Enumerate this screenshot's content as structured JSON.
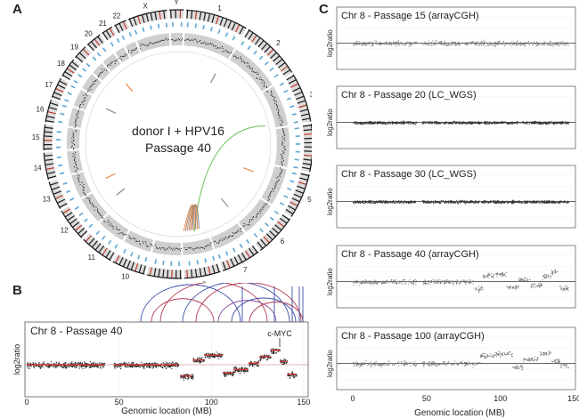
{
  "panels": {
    "a": {
      "letter": "A",
      "center_line1": "donor I + HPV16",
      "center_line2": "Passage 40",
      "chromosomes": [
        "1",
        "2",
        "3",
        "4",
        "5",
        "6",
        "7",
        "8",
        "9",
        "10",
        "11",
        "12",
        "13",
        "14",
        "15",
        "16",
        "17",
        "18",
        "19",
        "20",
        "21",
        "22",
        "X",
        "Y"
      ],
      "link_colors": {
        "green": "#6cbf5a",
        "orange": "#e8894a",
        "gray": "#8a8a8a"
      }
    },
    "b": {
      "letter": "B",
      "title": "Chr 8 - Passage 40",
      "annotation": "c-MYC",
      "xlabel": "Genomic location (MB)",
      "ylabel": "log2ratio",
      "xticks": [
        "0",
        "50",
        "100",
        "150"
      ]
    },
    "c": {
      "letter": "C",
      "xlabel": "Genomic location (MB)",
      "ylabel": "log2ratio",
      "xticks": [
        "0",
        "50",
        "100",
        "150"
      ],
      "subplots": [
        {
          "title": "Chr 8 - Passage 15 (arrayCGH)"
        },
        {
          "title": "Chr 8 - Passage 20 (LC_WGS)"
        },
        {
          "title": "Chr 8 - Passage 30 (LC_WGS)"
        },
        {
          "title": "Chr 8 - Passage 40 (arrayCGH)"
        },
        {
          "title": "Chr 8 - Passage 100 (arrayCGH)"
        }
      ]
    }
  },
  "chart_data": [
    {
      "type": "scatter",
      "title": "Chr 8 - Passage 40",
      "xlabel": "Genomic location (MB)",
      "ylabel": "log2ratio",
      "xlim": [
        0,
        146
      ],
      "segments": [
        {
          "start": 0,
          "end": 42,
          "level": 0
        },
        {
          "start": 47,
          "end": 82,
          "level": 0
        },
        {
          "start": 83,
          "end": 90,
          "level": -0.7
        },
        {
          "start": 90,
          "end": 96,
          "level": 0.3
        },
        {
          "start": 96,
          "end": 106,
          "level": 0.6
        },
        {
          "start": 106,
          "end": 112,
          "level": -0.5
        },
        {
          "start": 112,
          "end": 120,
          "level": -0.3
        },
        {
          "start": 120,
          "end": 126,
          "level": 0.1
        },
        {
          "start": 126,
          "end": 132,
          "level": 0.5
        },
        {
          "start": 132,
          "end": 137,
          "level": 0.9
        },
        {
          "start": 137,
          "end": 141,
          "level": 0.2
        },
        {
          "start": 141,
          "end": 146,
          "level": -0.6
        }
      ]
    },
    {
      "type": "scatter",
      "title": "Chr 8 - Passage 15 (arrayCGH)",
      "xlim": [
        0,
        146
      ],
      "segments": [
        {
          "start": 0,
          "end": 43,
          "level": 0
        },
        {
          "start": 47,
          "end": 146,
          "level": 0
        }
      ]
    },
    {
      "type": "scatter",
      "title": "Chr 8 - Passage 20 (LC_WGS)",
      "xlim": [
        0,
        146
      ],
      "segments": [
        {
          "start": 0,
          "end": 43,
          "level": 0
        },
        {
          "start": 47,
          "end": 146,
          "level": 0
        }
      ]
    },
    {
      "type": "scatter",
      "title": "Chr 8 - Passage 30 (LC_WGS)",
      "xlim": [
        0,
        146
      ],
      "segments": [
        {
          "start": 0,
          "end": 43,
          "level": 0
        },
        {
          "start": 47,
          "end": 146,
          "level": 0
        }
      ]
    },
    {
      "type": "scatter",
      "title": "Chr 8 - Passage 40 (arrayCGH)",
      "xlim": [
        0,
        146
      ],
      "segments": [
        {
          "start": 0,
          "end": 43,
          "level": 0
        },
        {
          "start": 47,
          "end": 82,
          "level": 0
        },
        {
          "start": 82,
          "end": 88,
          "level": -0.8
        },
        {
          "start": 88,
          "end": 96,
          "level": 0.7
        },
        {
          "start": 96,
          "end": 104,
          "level": 0.9
        },
        {
          "start": 104,
          "end": 112,
          "level": -0.6
        },
        {
          "start": 112,
          "end": 120,
          "level": 0.3
        },
        {
          "start": 120,
          "end": 128,
          "level": -0.4
        },
        {
          "start": 128,
          "end": 134,
          "level": 0.6
        },
        {
          "start": 134,
          "end": 139,
          "level": 1.1
        },
        {
          "start": 139,
          "end": 146,
          "level": -0.7
        }
      ]
    },
    {
      "type": "scatter",
      "title": "Chr 8 - Passage 100 (arrayCGH)",
      "xlim": [
        0,
        146
      ],
      "segments": [
        {
          "start": 0,
          "end": 43,
          "level": 0
        },
        {
          "start": 47,
          "end": 86,
          "level": 0
        },
        {
          "start": 86,
          "end": 96,
          "level": 0.9
        },
        {
          "start": 96,
          "end": 108,
          "level": 1.1
        },
        {
          "start": 108,
          "end": 115,
          "level": -0.4
        },
        {
          "start": 115,
          "end": 126,
          "level": 0.5
        },
        {
          "start": 126,
          "end": 134,
          "level": 1.2
        },
        {
          "start": 134,
          "end": 140,
          "level": 0.3
        },
        {
          "start": 140,
          "end": 146,
          "level": -0.2
        }
      ]
    }
  ]
}
